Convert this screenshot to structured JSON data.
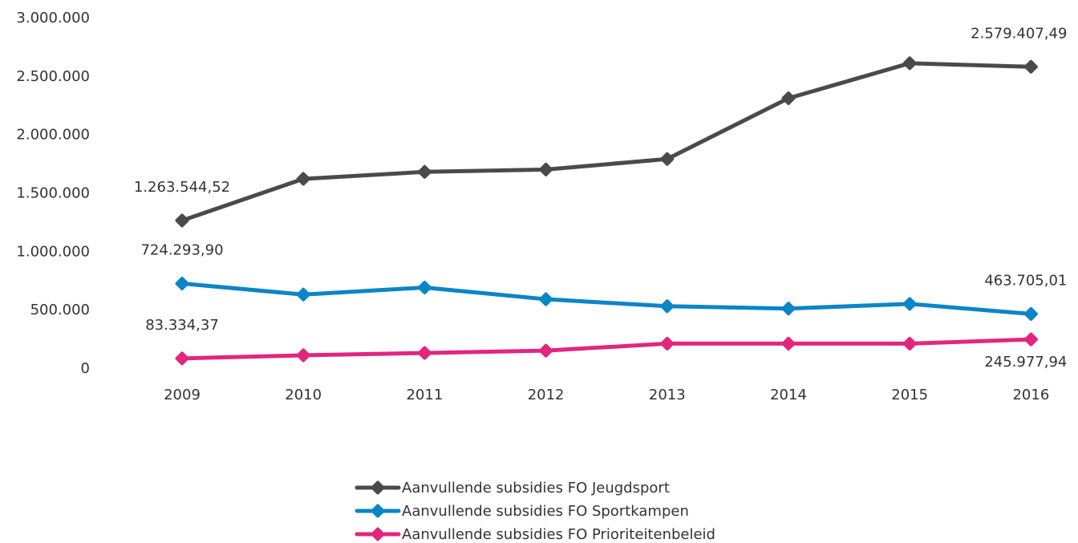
{
  "chart_data": {
    "type": "line",
    "title": "",
    "xlabel": "",
    "ylabel": "",
    "x": [
      "2009",
      "2010",
      "2011",
      "2012",
      "2013",
      "2014",
      "2015",
      "2016"
    ],
    "ylim": [
      0,
      3000000
    ],
    "yticks": [
      0,
      500000,
      1000000,
      1500000,
      2000000,
      2500000,
      3000000
    ],
    "ytick_labels": [
      "0",
      "500.000",
      "1.000.000",
      "1.500.000",
      "2.000.000",
      "2.500.000",
      "3.000.000"
    ],
    "grid": false,
    "legend_position": "bottom",
    "series": [
      {
        "name": "Aanvullende subsidies FO Jeugdsport",
        "color": "#4a4a4a",
        "values": [
          1263544.52,
          1620000,
          1680000,
          1700000,
          1790000,
          2310000,
          2610000,
          2579407.49
        ]
      },
      {
        "name": "Aanvullende subsidies FO Sportkampen",
        "color": "#0a85c7",
        "values": [
          724293.9,
          630000,
          690000,
          590000,
          530000,
          510000,
          550000,
          463705.01
        ]
      },
      {
        "name": "Aanvullende subsidies FO Prioriteitenbeleid",
        "color": "#e2267f",
        "values": [
          83334.37,
          110000,
          130000,
          150000,
          210000,
          210000,
          210000,
          245977.94
        ]
      }
    ],
    "data_labels": [
      {
        "series": 0,
        "index": 0,
        "text": "1.263.544,52",
        "position": "above"
      },
      {
        "series": 0,
        "index": 7,
        "text": "2.579.407,49",
        "position": "above"
      },
      {
        "series": 1,
        "index": 0,
        "text": "724.293,90",
        "position": "above"
      },
      {
        "series": 1,
        "index": 7,
        "text": "463.705,01",
        "position": "above"
      },
      {
        "series": 2,
        "index": 0,
        "text": "83.334,37",
        "position": "above"
      },
      {
        "series": 2,
        "index": 7,
        "text": "245.977,94",
        "position": "below"
      }
    ]
  }
}
